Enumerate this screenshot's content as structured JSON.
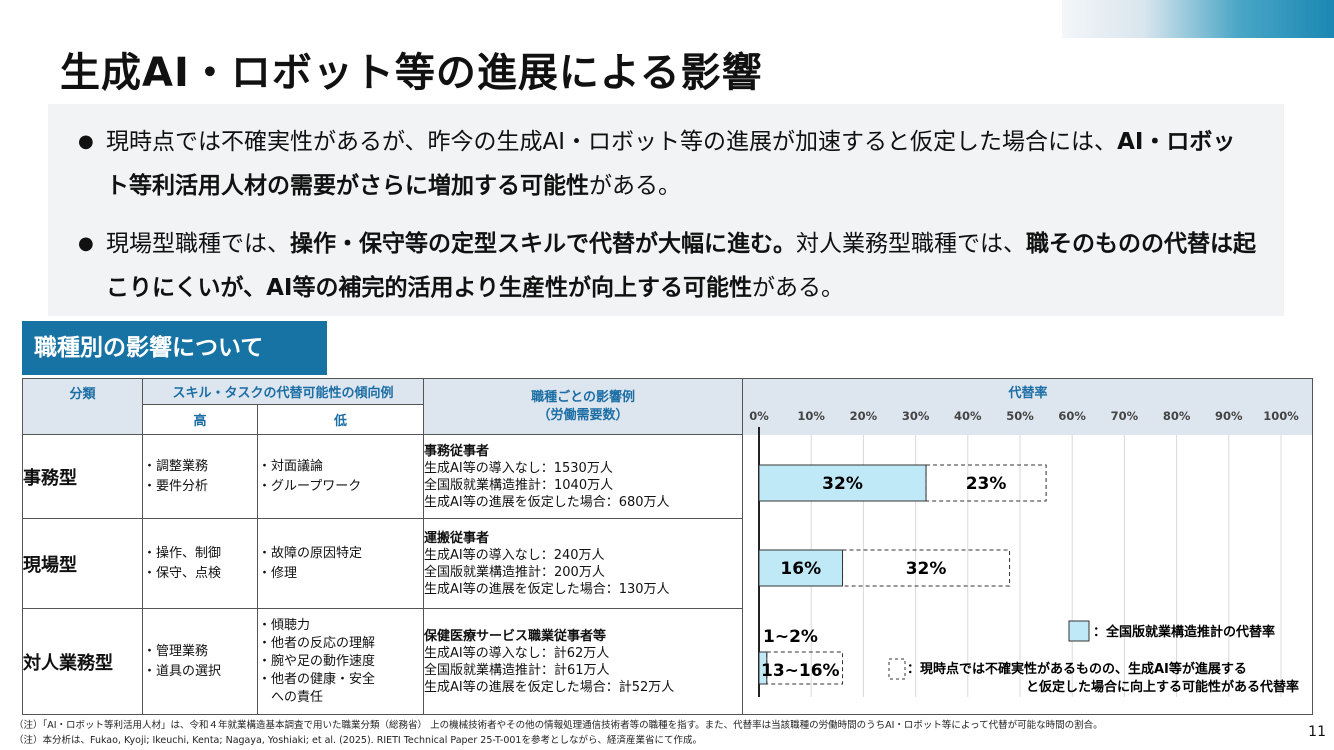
{
  "title": "生成AI・ロボット等の進展による影響",
  "summary": {
    "b1_pre": "現時点では不確実性があるが、昨今の生成AI・ロボット等の進展が加速すると仮定した場合には、",
    "b1_bold": "AI・ロボット等利活用人材の需要がさらに増加する可能性",
    "b1_post": "がある。",
    "b2_pre": "現場型職種では、",
    "b2_bold1": "操作・保守等の定型スキルで代替が大幅に進む。",
    "b2_mid": "対人業務型職種では、",
    "b2_bold2": "職そのものの代替は起こりにくいが、AI等の補完的活用より生産性が向上する可能性",
    "b2_post": "がある。"
  },
  "section_label": "職種別の影響について",
  "table": {
    "h_category": "分類",
    "h_skill": "スキル・タスクの代替可能性の傾向例",
    "h_high": "高",
    "h_low": "低",
    "h_example": "職種ごとの影響例\n（労働需要数）",
    "h_rate": "代替率",
    "rows": [
      {
        "category": "事務型",
        "high": "・調整業務\n・要件分析",
        "low": "・対面議論\n・グループワーク",
        "role": "事務従事者",
        "l1": "生成AI等の導入なし：1530万人",
        "l2": "全国版就業構造推計：1040万人",
        "l3": "生成AI等の進展を仮定した場合：680万人"
      },
      {
        "category": "現場型",
        "high": "・操作、制御\n・保守、点検",
        "low": "・故障の原因特定\n・修理",
        "role": "運搬従事者",
        "l1": "生成AI等の導入なし：240万人",
        "l2": "全国版就業構造推計：200万人",
        "l3": "生成AI等の進展を仮定した場合：130万人"
      },
      {
        "category": "対人業務型",
        "high": "・管理業務\n・道具の選択",
        "low": "・傾聴力\n・他者の反応の理解\n・腕や足の動作速度\n・他者の健康・安全\n　への責任",
        "role": "保健医療サービス職業従事者等",
        "l1": "生成AI等の導入なし：計62万人",
        "l2": "全国版就業構造推計：計61万人",
        "l3": "生成AI等の進展を仮定した場合：計52万人"
      }
    ]
  },
  "chart_data": {
    "type": "bar",
    "orientation": "horizontal-stacked",
    "xlim": [
      0,
      100
    ],
    "x_unit": "%",
    "ticks": [
      "0%",
      "10%",
      "20%",
      "30%",
      "40%",
      "50%",
      "60%",
      "70%",
      "80%",
      "90%",
      "100%"
    ],
    "categories": [
      "事務型",
      "現場型",
      "対人業務型"
    ],
    "series": [
      {
        "name": "全国版就業構造推計の代替率",
        "values": [
          32,
          16,
          1.5
        ],
        "labels": [
          "32%",
          "16%",
          "1~2%"
        ],
        "color": "#bfe9f7"
      },
      {
        "name": "現時点では不確実性があるものの、生成AI等が進展すると仮定した場合に向上する可能性がある代替率",
        "values": [
          23,
          32,
          14.5
        ],
        "labels": [
          "23%",
          "32%",
          "13~16%"
        ],
        "style": "dashed"
      }
    ],
    "legend": {
      "solid": "：全国版就業構造推計の代替率",
      "dashed_1": "：現時点では不確実性があるものの、生成AI等が進展する",
      "dashed_2": "と仮定した場合に向上する可能性がある代替率"
    }
  },
  "notes": [
    "（注）「AI・ロボット等利活用人材」は、令和４年就業構造基本調査で用いた職業分類（総務省） 上の機械技術者やその他の情報処理通信技術者等の職種を指す。また、代替率は当該職種の労働時間のうちAI・ロボット等によって代替が可能な時間の割合。",
    "（注）本分析は、Fukao, Kyoji; Ikeuchi, Kenta; Nagaya, Yoshiaki; et al. (2025). RIETI Technical Paper 25-T-001を参考としながら、経済産業省にて作成。"
  ],
  "page_number": "11"
}
